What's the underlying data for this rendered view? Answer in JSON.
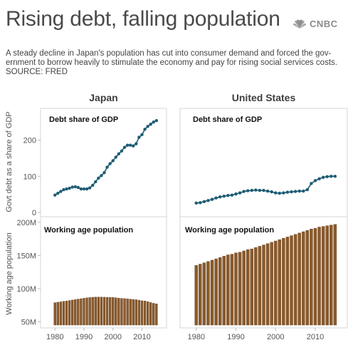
{
  "header": {
    "title": "Rising debt, falling population",
    "logo_text": "CNBC",
    "subtitle": "A steady decline in Japan's population has cut into consumer demand and forced the gov-ernment to borrow heavily to stimulate the economy and pay for rising social services costs. SOURCE: FRED"
  },
  "colors": {
    "debt_line": "#2b6b82",
    "debt_marker": "#1f5c73",
    "population_bar": "#8b5a2b",
    "population_bar_edge": "#5e3a17",
    "panel_border": "#d6d6d6"
  },
  "chart_data": [
    {
      "type": "line",
      "panel": "Japan",
      "column_title": "Japan",
      "title": "Debt share of GDP",
      "ylabel": "Govt debt as a share of GDP",
      "xlim": [
        1977,
        2017
      ],
      "ylim": [
        0,
        280
      ],
      "yticks": [
        0,
        100,
        200
      ],
      "x": [
        1980,
        1981,
        1982,
        1983,
        1984,
        1985,
        1986,
        1987,
        1988,
        1989,
        1990,
        1991,
        1992,
        1993,
        1994,
        1995,
        1996,
        1997,
        1998,
        1999,
        2000,
        2001,
        2002,
        2003,
        2004,
        2005,
        2006,
        2007,
        2008,
        2009,
        2010,
        2011,
        2012,
        2013,
        2014,
        2015
      ],
      "values": [
        48,
        53,
        58,
        63,
        65,
        67,
        70,
        71,
        69,
        65,
        65,
        65,
        68,
        75,
        85,
        95,
        102,
        110,
        125,
        135,
        143,
        153,
        162,
        170,
        180,
        186,
        186,
        184,
        190,
        208,
        215,
        230,
        238,
        244,
        250,
        254
      ]
    },
    {
      "type": "line",
      "panel": "United States",
      "column_title": "United States",
      "title": "Debt share of GDP",
      "ylabel": "",
      "xlim": [
        1977,
        2017
      ],
      "ylim": [
        0,
        280
      ],
      "yticks": [
        0,
        100,
        200
      ],
      "x": [
        1980,
        1981,
        1982,
        1983,
        1984,
        1985,
        1986,
        1987,
        1988,
        1989,
        1990,
        1991,
        1992,
        1993,
        1994,
        1995,
        1996,
        1997,
        1998,
        1999,
        2000,
        2001,
        2002,
        2003,
        2004,
        2005,
        2006,
        2007,
        2008,
        2009,
        2010,
        2011,
        2012,
        2013,
        2014,
        2015
      ],
      "values": [
        26,
        27,
        30,
        33,
        36,
        40,
        43,
        45,
        47,
        48,
        51,
        54,
        58,
        60,
        61,
        62,
        61,
        61,
        59,
        57,
        54,
        53,
        54,
        56,
        57,
        58,
        59,
        59,
        63,
        80,
        88,
        93,
        97,
        99,
        100,
        100
      ]
    },
    {
      "type": "bar",
      "panel": "Japan",
      "title": "Working age population",
      "ylabel": "Working age population",
      "xlim": [
        1977,
        2017
      ],
      "ylim": [
        45,
        200
      ],
      "yticks": [
        50,
        100,
        150,
        200
      ],
      "ytick_labels": [
        "50M",
        "100M",
        "150M",
        "200M"
      ],
      "x": [
        1980,
        1981,
        1982,
        1983,
        1984,
        1985,
        1986,
        1987,
        1988,
        1989,
        1990,
        1991,
        1992,
        1993,
        1994,
        1995,
        1996,
        1997,
        1998,
        1999,
        2000,
        2001,
        2002,
        2003,
        2004,
        2005,
        2006,
        2007,
        2008,
        2009,
        2010,
        2011,
        2012,
        2013,
        2014,
        2015
      ],
      "values": [
        78.8,
        79.5,
        80.1,
        80.8,
        81.4,
        82.1,
        82.8,
        83.5,
        84.2,
        84.8,
        85.5,
        86.1,
        86.6,
        87.0,
        87.2,
        87.3,
        87.2,
        87.1,
        86.9,
        86.8,
        86.6,
        86.3,
        85.7,
        85.3,
        85.1,
        84.7,
        84.1,
        83.7,
        83.3,
        82.6,
        81.7,
        81.4,
        80.4,
        79.0,
        77.9,
        77.0
      ]
    },
    {
      "type": "bar",
      "panel": "United States",
      "title": "Working age population",
      "ylabel": "",
      "xlim": [
        1977,
        2017
      ],
      "ylim": [
        45,
        200
      ],
      "yticks": [
        50,
        100,
        150,
        200
      ],
      "ytick_labels": [
        "50M",
        "100M",
        "150M",
        "200M"
      ],
      "x": [
        1980,
        1981,
        1982,
        1983,
        1984,
        1985,
        1986,
        1987,
        1988,
        1989,
        1990,
        1991,
        1992,
        1993,
        1994,
        1995,
        1996,
        1997,
        1998,
        1999,
        2000,
        2001,
        2002,
        2003,
        2004,
        2005,
        2006,
        2007,
        2008,
        2009,
        2010,
        2011,
        2012,
        2013,
        2014,
        2015
      ],
      "values": [
        135,
        137,
        139,
        141,
        143,
        145,
        147,
        149,
        151,
        152,
        154,
        155,
        157,
        159,
        160,
        162,
        164,
        166,
        168,
        170,
        172,
        174,
        176,
        178,
        180,
        182,
        184,
        186,
        188,
        190,
        191,
        193,
        194,
        195,
        196,
        197
      ]
    }
  ],
  "x_axis": {
    "ticks": [
      1980,
      1990,
      2000,
      2010
    ]
  }
}
